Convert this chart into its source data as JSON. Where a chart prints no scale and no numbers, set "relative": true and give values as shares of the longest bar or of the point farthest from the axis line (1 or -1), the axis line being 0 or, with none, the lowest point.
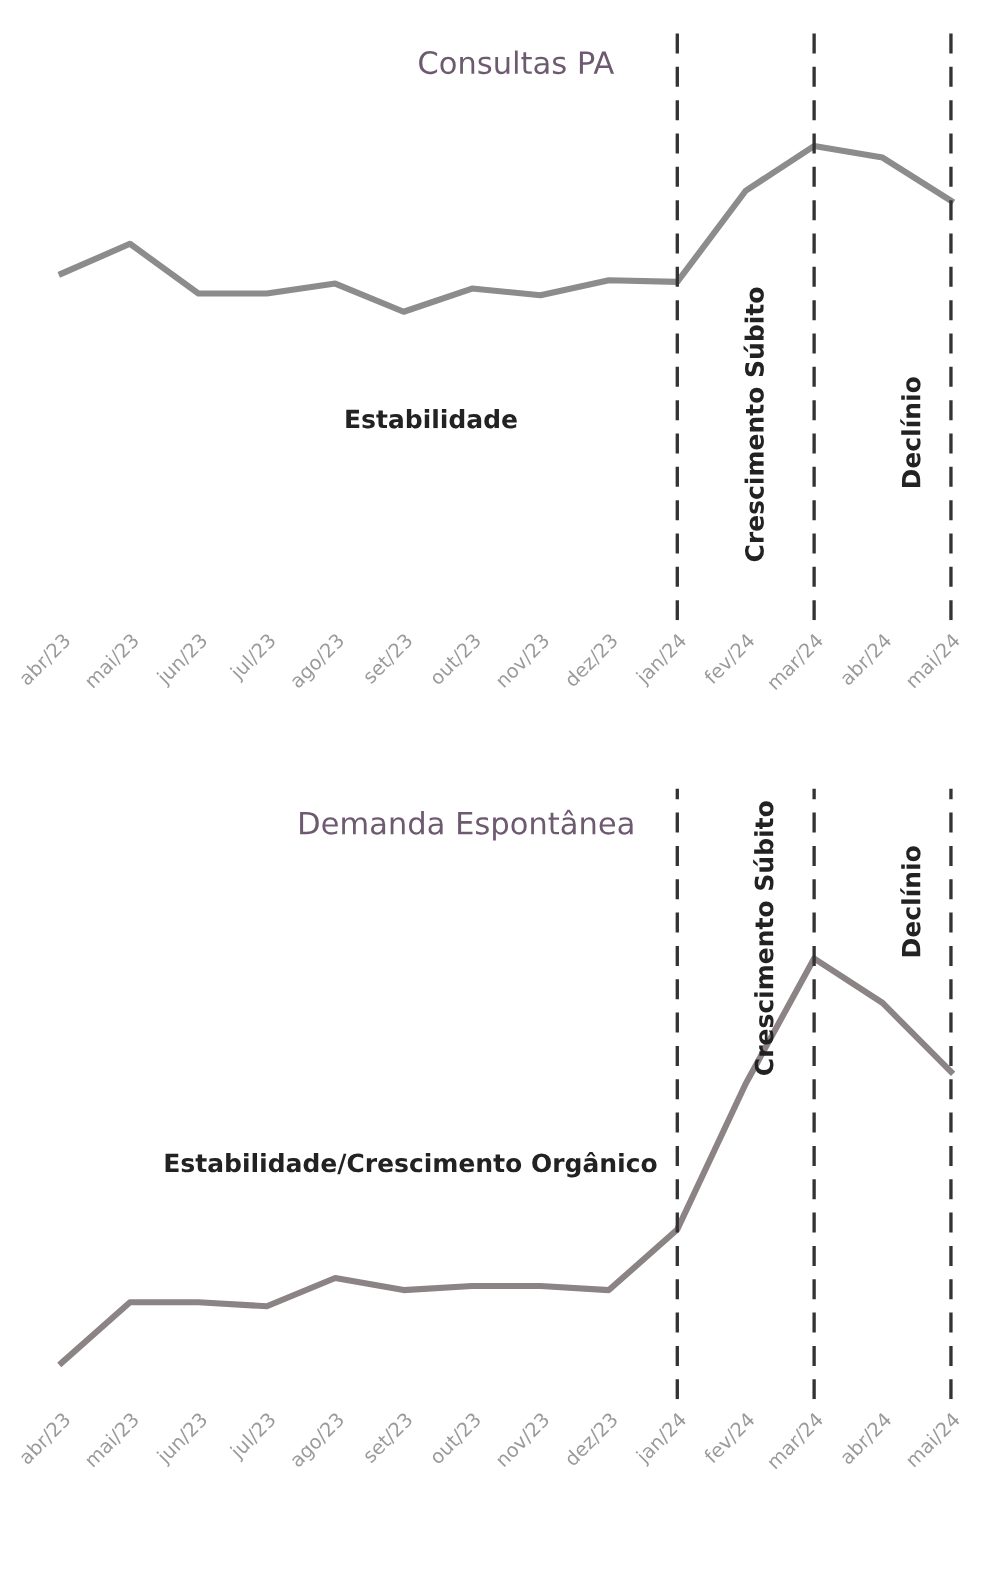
{
  "chart_data": [
    {
      "type": "line",
      "title": "Consultas PA",
      "relative": true,
      "categories": [
        "abr/23",
        "mai/23",
        "jun/23",
        "jul/23",
        "ago/23",
        "set/23",
        "out/23",
        "nov/23",
        "dez/23",
        "jan/24",
        "fev/24",
        "mar/24",
        "abr/24",
        "mai/24"
      ],
      "series": [
        {
          "color": "#8c8c8c",
          "values": [
            0.23,
            0.41,
            0.11,
            0.11,
            0.17,
            0,
            0.14,
            0.1,
            0.19,
            0.18,
            0.73,
            1,
            0.93,
            0.67
          ]
        }
      ],
      "ref_lines": [
        {
          "axis": "x",
          "value": "jan/24",
          "line_style": "dashed",
          "color": "#333333"
        },
        {
          "axis": "x",
          "value": "mar/24",
          "line_style": "dashed",
          "color": "#333333"
        },
        {
          "axis": "x",
          "value": "mai/24",
          "line_style": "dashed",
          "color": "#333333"
        }
      ],
      "annotations": [
        "Estabilidade",
        "Crescimento Súbito",
        "Declínio"
      ],
      "line_style": "solid"
    },
    {
      "type": "line",
      "title": "Demanda Espontânea",
      "relative": true,
      "categories": [
        "abr/23",
        "mai/23",
        "jun/23",
        "jul/23",
        "ago/23",
        "set/23",
        "out/23",
        "nov/23",
        "dez/23",
        "jan/24",
        "fev/24",
        "mar/24",
        "abr/24",
        "mai/24"
      ],
      "series": [
        {
          "color": "#8c8385",
          "values": [
            0,
            0.15,
            0.15,
            0.14,
            0.21,
            0.18,
            0.19,
            0.19,
            0.18,
            0.33,
            0.69,
            1,
            0.89,
            0.72
          ]
        }
      ],
      "ref_lines": [
        {
          "axis": "x",
          "value": "jan/24",
          "line_style": "dashed",
          "color": "#333333"
        },
        {
          "axis": "x",
          "value": "mar/24",
          "line_style": "dashed",
          "color": "#333333"
        },
        {
          "axis": "x",
          "value": "mai/24",
          "line_style": "dashed",
          "color": "#333333"
        }
      ],
      "annotations": [
        "Estabilidade/Crescimento Orgânico",
        "Crescimento Súbito",
        "Declínio"
      ],
      "line_style": "solid"
    }
  ]
}
